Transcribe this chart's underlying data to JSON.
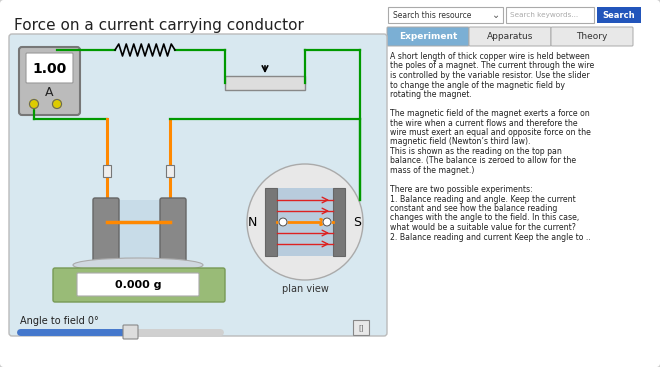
{
  "title": "Force on a current carrying conductor",
  "bg_outer": "#d8d8d8",
  "bg_white": "#ffffff",
  "bg_diagram": "#d8e8f0",
  "tab_active_color": "#7bafd4",
  "tab_inactive_color": "#e8e8e8",
  "tabs": [
    "Experiment",
    "Apparatus",
    "Theory"
  ],
  "tab_active": "Experiment",
  "search_label": "Search this resource",
  "search_placeholder": "Search keywords...",
  "search_btn": "Search",
  "search_btn_color": "#2255bb",
  "text_block": [
    "A short length of thick copper wire is held between",
    "the poles of a magnet. The current through the wire",
    "is controlled by the variable resistor. Use the slider",
    "to change the angle of the magnetic field by",
    "rotating the magnet.",
    "",
    "The magnetic field of the magnet exerts a force on",
    "the wire when a current flows and therefore the",
    "wire must exert an equal and opposite force on the",
    "magnetic field (Newton’s third law).",
    "This is shown as the reading on the top pan",
    "balance. (The balance is zeroed to allow for the",
    "mass of the magnet.)",
    "",
    "There are two possible experiments:",
    "1. Balance reading and angle. Keep the current",
    "constant and see how the balance reading",
    "changes with the angle to the field. In this case,",
    "what would be a suitable value for the current?",
    "2. Balance reading and current Keep the angle to .."
  ],
  "ammeter_value": "1.00",
  "ammeter_unit": "A",
  "balance_value": "0.000 g",
  "slider_label": "Angle to field 0°",
  "plan_view_label": "plan view",
  "green_wire": "#009900",
  "orange_wire": "#ff8800",
  "red_arrow": "#dd2222",
  "balance_green": "#99bb77",
  "ammeter_gray": "#aaaaaa",
  "magnet_gray": "#888888",
  "magnet_blue": "#b8ccdd"
}
